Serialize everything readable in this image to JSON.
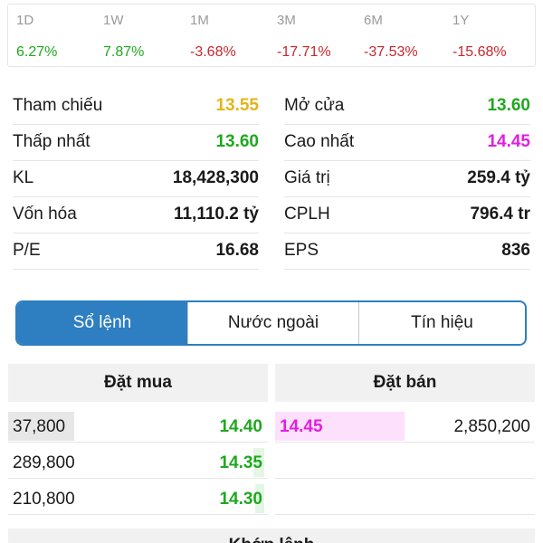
{
  "performance": [
    {
      "period": "1D",
      "change": "6.27%",
      "direction": "up"
    },
    {
      "period": "1W",
      "change": "7.87%",
      "direction": "up"
    },
    {
      "period": "1M",
      "change": "-3.68%",
      "direction": "down"
    },
    {
      "period": "3M",
      "change": "-17.71%",
      "direction": "down"
    },
    {
      "period": "6M",
      "change": "-37.53%",
      "direction": "down"
    },
    {
      "period": "1Y",
      "change": "-15.68%",
      "direction": "down"
    }
  ],
  "stats": {
    "reference": {
      "label": "Tham chiếu",
      "value": "13.55"
    },
    "open": {
      "label": "Mở cửa",
      "value": "13.60"
    },
    "low": {
      "label": "Thấp nhất",
      "value": "13.60"
    },
    "high": {
      "label": "Cao nhất",
      "value": "14.45"
    },
    "volume": {
      "label": "KL",
      "value": "18,428,300"
    },
    "turnover": {
      "label": "Giá trị",
      "value": "259.4 tỷ"
    },
    "market_cap": {
      "label": "Vốn hóa",
      "value": "11,110.2 tỷ"
    },
    "shares": {
      "label": "CPLH",
      "value": "796.4 tr"
    },
    "pe": {
      "label": "P/E",
      "value": "16.68"
    },
    "eps": {
      "label": "EPS",
      "value": "836"
    }
  },
  "tabs": [
    {
      "label": "Sổ lệnh",
      "active": true
    },
    {
      "label": "Nước ngoài",
      "active": false
    },
    {
      "label": "Tín hiệu",
      "active": false
    }
  ],
  "order_book": {
    "buy_header": "Đặt mua",
    "sell_header": "Đặt bán",
    "bids": [
      {
        "volume": "37,800",
        "price": "14.40"
      },
      {
        "volume": "289,800",
        "price": "14.35"
      },
      {
        "volume": "210,800",
        "price": "14.30"
      }
    ],
    "asks": [
      {
        "price": "14.45",
        "volume": "2,850,200"
      }
    ]
  },
  "next_section_header": "Khớp lệnh",
  "colors": {
    "up": "#1fa81f",
    "down": "#c7272f",
    "reference": "#e2b51a",
    "ceiling": "#e21ee0",
    "accent": "#2d7fc1"
  }
}
